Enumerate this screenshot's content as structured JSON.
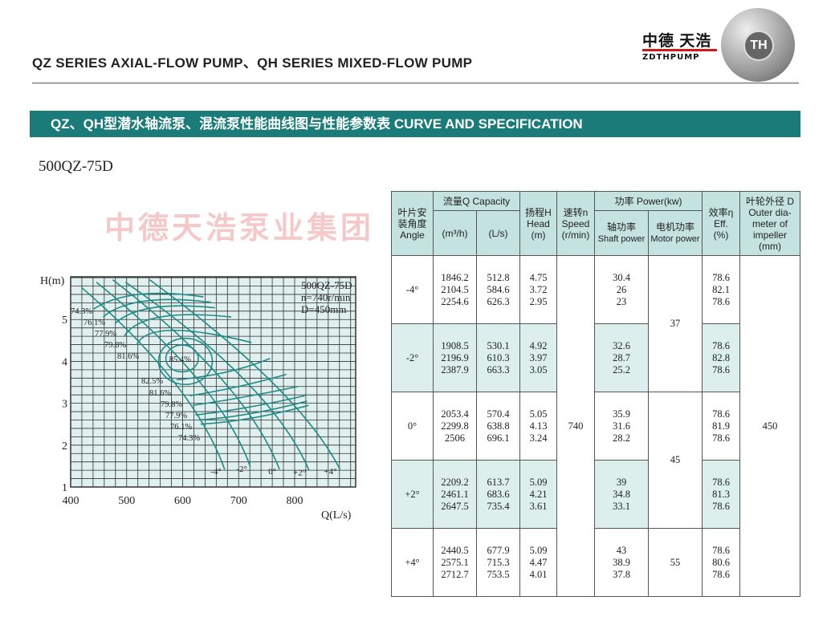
{
  "header": {
    "series_title": "QZ SERIES AXIAL-FLOW PUMP、QH SERIES MIXED-FLOW PUMP",
    "logo_cn": "中德 天浩",
    "logo_en": "ZDTHPUMP",
    "logo_mark": "TH"
  },
  "banner": {
    "text": "QZ、QH型潜水轴流泵、混流泵性能曲线图与性能参数表  CURVE AND SPECIFICATION"
  },
  "model_title": "500QZ-75D",
  "watermark": "中德天浩泵业集团",
  "chart_data": {
    "type": "line",
    "xlabel": "Q(L/s)",
    "ylabel": "H(m)",
    "xlim": [
      400,
      909
    ],
    "ylim": [
      1,
      6.02
    ],
    "x_ticks": [
      400,
      500,
      600,
      700,
      800
    ],
    "y_ticks": [
      1,
      2,
      3,
      4,
      5
    ],
    "grid": true,
    "annotation": [
      "500QZ-75D",
      "n=740r/min",
      "D=450mm"
    ],
    "colors": {
      "curve": "#1f8a86",
      "grid": "#333333",
      "background": "#dff0ef"
    },
    "head_curves": [
      {
        "name": "-4°",
        "points": [
          [
            420,
            5.76
          ],
          [
            585,
            3.5
          ],
          [
            675,
            1.42
          ]
        ]
      },
      {
        "name": "-2°",
        "points": [
          [
            446,
            5.89
          ],
          [
            625,
            3.6
          ],
          [
            721,
            1.48
          ]
        ]
      },
      {
        "name": "0°",
        "points": [
          [
            475,
            5.95
          ],
          [
            668,
            3.6
          ],
          [
            773,
            1.42
          ]
        ]
      },
      {
        "name": "+2°",
        "points": [
          [
            498,
            5.89
          ],
          [
            711,
            3.55
          ],
          [
            826,
            1.39
          ]
        ]
      },
      {
        "name": "+4°",
        "points": [
          [
            541,
            5.95
          ],
          [
            760,
            3.5
          ],
          [
            881,
            1.42
          ]
        ]
      }
    ],
    "efficiency_curves": [
      {
        "name": "74.3%",
        "points": [
          [
            441,
            5.25
          ],
          [
            522,
            5.6
          ],
          [
            637,
            5.54
          ]
        ]
      },
      {
        "name": "76.1%",
        "points": [
          [
            458,
            5.06
          ],
          [
            532,
            5.44
          ],
          [
            651,
            5.41
          ]
        ]
      },
      {
        "name": "77.9%",
        "points": [
          [
            479,
            4.9
          ],
          [
            546,
            5.28
          ],
          [
            658,
            5.28
          ]
        ]
      },
      {
        "name": "79.8%",
        "points": [
          [
            496,
            4.61
          ],
          [
            560,
            5.06
          ],
          [
            687,
            5.06
          ]
        ]
      },
      {
        "name": "81.6%",
        "points": [
          [
            518,
            4.39
          ],
          [
            580,
            4.74
          ],
          [
            723,
            4.45
          ]
        ]
      },
      {
        "name": "82.5%",
        "points": [
          [
            589,
            3.56
          ],
          [
            680,
            3.75
          ],
          [
            756,
            4.07
          ]
        ]
      },
      {
        "name": "81.6%",
        "points": [
          [
            613,
            3.18
          ],
          [
            700,
            3.4
          ],
          [
            785,
            3.69
          ]
        ]
      },
      {
        "name": "79.8%",
        "points": [
          [
            618,
            2.95
          ],
          [
            710,
            3.15
          ],
          [
            806,
            3.4
          ]
        ]
      },
      {
        "name": "77.9%",
        "points": [
          [
            623,
            2.72
          ],
          [
            715,
            2.9
          ],
          [
            818,
            3.18
          ]
        ]
      },
      {
        "name": "76.1%",
        "points": [
          [
            628,
            2.6
          ],
          [
            720,
            2.75
          ],
          [
            822,
            3.05
          ]
        ]
      },
      {
        "name": "74.3%",
        "points": [
          [
            632,
            2.5
          ],
          [
            725,
            2.65
          ],
          [
            825,
            2.95
          ]
        ]
      }
    ],
    "efficiency_loops": [
      {
        "name": "85.4%",
        "center": [
          599,
          4.07
        ],
        "radius_q": 29,
        "radius_h": 0.32
      },
      {
        "name": "82.5%",
        "center": [
          605,
          4.0
        ],
        "radius_q": 48,
        "radius_h": 0.55
      }
    ]
  },
  "table": {
    "headers": {
      "angle": [
        "叶片安",
        "装角度",
        "Angle"
      ],
      "capacity": "流量Q Capacity",
      "m3h": "(m³/h)",
      "ls": "(L/s)",
      "head": [
        "扬程H",
        "Head",
        "(m)"
      ],
      "speed": [
        "速转n",
        "Speed",
        "(r/min)"
      ],
      "power": "功率 Power(kw)",
      "shaft": [
        "轴功率",
        "Shaft power"
      ],
      "motor": [
        "电机功率",
        "Motor power"
      ],
      "eff": [
        "效率η",
        "Eff.",
        "(%)"
      ],
      "diam": [
        "叶轮外径 D",
        "Outer dia-",
        "meter of",
        "impeller",
        "(mm)"
      ]
    },
    "rows": [
      {
        "angle": "-4°",
        "m3h": [
          "1846.2",
          "2104.5",
          "2254.6"
        ],
        "ls": [
          "512.8",
          "584.6",
          "626.3"
        ],
        "head": [
          "4.75",
          "3.72",
          "2.95"
        ],
        "shaft": [
          "30.4",
          "26",
          "23"
        ],
        "eff": [
          "78.6",
          "82.1",
          "78.6"
        ]
      },
      {
        "angle": "-2°",
        "m3h": [
          "1908.5",
          "2196.9",
          "2387.9"
        ],
        "ls": [
          "530.1",
          "610.3",
          "663.3"
        ],
        "head": [
          "4.92",
          "3.97",
          "3.05"
        ],
        "shaft": [
          "32.6",
          "28.7",
          "25.2"
        ],
        "eff": [
          "78.6",
          "82.8",
          "78.6"
        ]
      },
      {
        "angle": "0°",
        "m3h": [
          "2053.4",
          "2299.8",
          "2506"
        ],
        "ls": [
          "570.4",
          "638.8",
          "696.1"
        ],
        "head": [
          "5.05",
          "4.13",
          "3.24"
        ],
        "shaft": [
          "35.9",
          "31.6",
          "28.2"
        ],
        "eff": [
          "78.6",
          "81.9",
          "78.6"
        ]
      },
      {
        "angle": "+2°",
        "m3h": [
          "2209.2",
          "2461.1",
          "2647.5"
        ],
        "ls": [
          "613.7",
          "683.6",
          "735.4"
        ],
        "head": [
          "5.09",
          "4.21",
          "3.61"
        ],
        "shaft": [
          "39",
          "34.8",
          "33.1"
        ],
        "eff": [
          "78.6",
          "81.3",
          "78.6"
        ]
      },
      {
        "angle": "+4°",
        "m3h": [
          "2440.5",
          "2575.1",
          "2712.7"
        ],
        "ls": [
          "677.9",
          "715.3",
          "753.5"
        ],
        "head": [
          "5.09",
          "4.47",
          "4.01"
        ],
        "shaft": [
          "43",
          "38.9",
          "37.8"
        ],
        "eff": [
          "78.6",
          "80.6",
          "78.6"
        ]
      }
    ],
    "speed": "740",
    "motor": [
      "37",
      "45",
      "55"
    ],
    "diameter": "450"
  }
}
